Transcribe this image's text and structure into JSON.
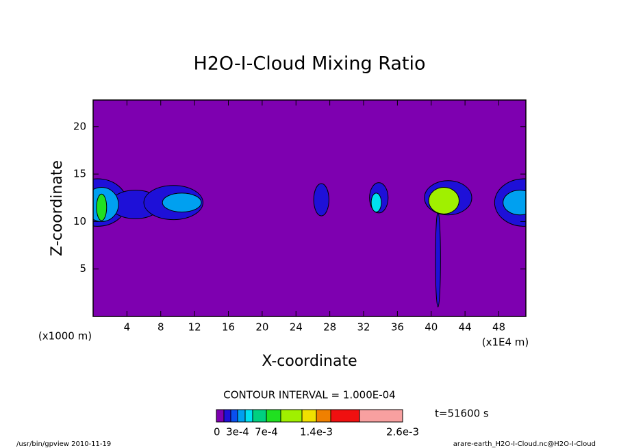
{
  "chart_data": {
    "type": "contour",
    "title": "H2O-I-Cloud Mixing Ratio",
    "x_label": "X-coordinate",
    "y_label": "Z-coordinate",
    "x_unit_label": "(x1E4 m)",
    "y_unit_label": "(x1000 m)",
    "xlim": [
      0,
      51.2
    ],
    "ylim": [
      0,
      22.8
    ],
    "xticks": [
      4,
      8,
      12,
      16,
      20,
      24,
      28,
      32,
      36,
      40,
      44,
      48
    ],
    "yticks": [
      5,
      10,
      15,
      20
    ],
    "contour_interval_label": "CONTOUR INTERVAL = 1.000E-04",
    "time_label": "t=51600 s",
    "footer_left": "/usr/bin/gpview  2010-11-19",
    "footer_right": "arare-earth_H2O-I-Cloud.nc@H2O-I-Cloud",
    "colorbar": {
      "levels": [
        0,
        0.0001,
        0.0002,
        0.0003,
        0.0004,
        0.0005,
        0.0007,
        0.001,
        0.0012,
        0.0014,
        0.0018,
        0.0022,
        0.0026
      ],
      "colors": [
        "#7e00b0",
        "#1e10d8",
        "#0a50f0",
        "#00a0f0",
        "#00e0f0",
        "#00d080",
        "#20e020",
        "#a0f000",
        "#f0e000",
        "#f08000",
        "#f01010",
        "#f8a0a0"
      ],
      "ticks": [
        {
          "value": 0,
          "label": "0"
        },
        {
          "value": 0.0003,
          "label": "3e-4"
        },
        {
          "value": 0.0007,
          "label": "7e-4"
        },
        {
          "value": 0.0014,
          "label": "1.4e-3"
        },
        {
          "value": 0.0026,
          "label": "2.6e-3"
        }
      ]
    },
    "blobs": [
      {
        "x": 0.5,
        "z": 12,
        "rx": 3.5,
        "rz": 2.5,
        "level": 0.0001
      },
      {
        "x": 5,
        "z": 11.8,
        "rx": 3,
        "rz": 1.5,
        "level": 0.0001
      },
      {
        "x": 9.5,
        "z": 12,
        "rx": 3.5,
        "rz": 1.8,
        "level": 0.0001
      },
      {
        "x": 1,
        "z": 11.8,
        "rx": 2,
        "rz": 1.8,
        "level": 0.0003
      },
      {
        "x": 1,
        "z": 11.5,
        "rx": 0.6,
        "rz": 1.4,
        "level": 0.0007
      },
      {
        "x": 10.5,
        "z": 12,
        "rx": 2.3,
        "rz": 1,
        "level": 0.0003
      },
      {
        "x": 27,
        "z": 12.3,
        "rx": 0.9,
        "rz": 1.7,
        "level": 0.0001
      },
      {
        "x": 33.8,
        "z": 12.5,
        "rx": 1.1,
        "rz": 1.6,
        "level": 0.0001
      },
      {
        "x": 33.5,
        "z": 12,
        "rx": 0.6,
        "rz": 1,
        "level": 0.0004
      },
      {
        "x": 40.8,
        "z": 6,
        "rx": 0.3,
        "rz": 5,
        "level": 0.0001
      },
      {
        "x": 42,
        "z": 12.5,
        "rx": 2.8,
        "rz": 1.8,
        "level": 0.0001
      },
      {
        "x": 41.5,
        "z": 12.2,
        "rx": 1.8,
        "rz": 1.4,
        "level": 0.001
      },
      {
        "x": 51,
        "z": 12,
        "rx": 3.5,
        "rz": 2.5,
        "level": 0.0001
      },
      {
        "x": 50.5,
        "z": 12,
        "rx": 2,
        "rz": 1.3,
        "level": 0.0003
      }
    ]
  }
}
